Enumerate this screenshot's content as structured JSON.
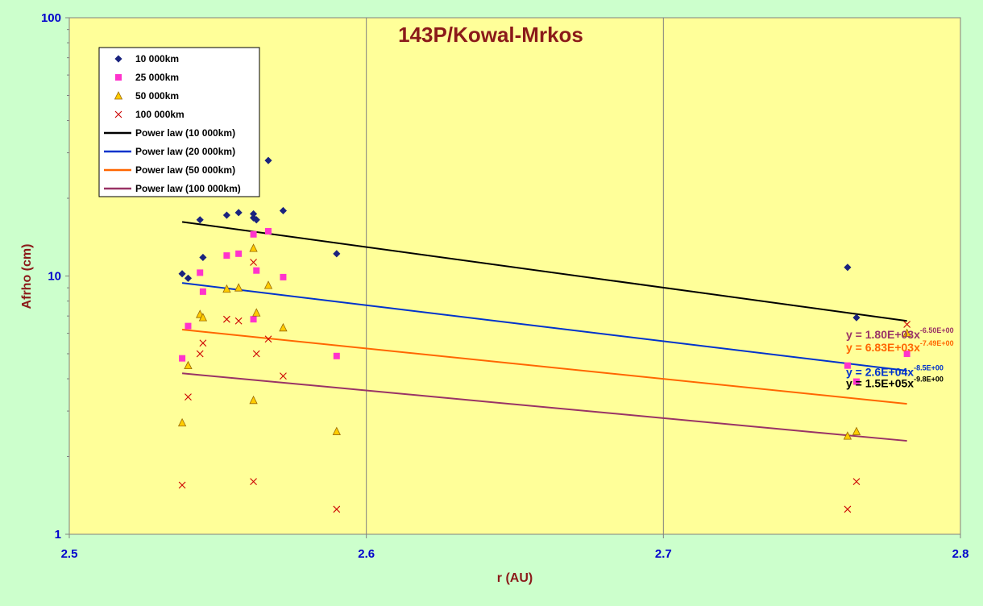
{
  "chart_data": {
    "type": "scatter",
    "title": "143P/Kowal-Mrkos",
    "xlabel": "r (AU)",
    "ylabel": "Afrho (cm)",
    "xlim": [
      2.5,
      2.8
    ],
    "ylim": [
      1,
      100
    ],
    "yscale": "log",
    "x_ticks": [
      "2.5",
      "2.6",
      "2.7",
      "2.8"
    ],
    "y_ticks": [
      "1",
      "10",
      "100"
    ],
    "grid": "vertical",
    "legend_position": "top-left",
    "colors": {
      "background": "#ccffcc",
      "plot_area": "#ffff99",
      "tick_text": "#0000cc",
      "title_text": "#8b1a1a"
    },
    "series": [
      {
        "name": "10 000km",
        "marker": "diamond",
        "color": "#1a237e",
        "points": [
          [
            2.538,
            10.2
          ],
          [
            2.54,
            9.8
          ],
          [
            2.544,
            16.5
          ],
          [
            2.545,
            11.8
          ],
          [
            2.553,
            17.2
          ],
          [
            2.557,
            17.6
          ],
          [
            2.562,
            17.4
          ],
          [
            2.562,
            16.8
          ],
          [
            2.563,
            16.5
          ],
          [
            2.567,
            28.0
          ],
          [
            2.572,
            17.9
          ],
          [
            2.59,
            12.2
          ],
          [
            2.762,
            10.8
          ],
          [
            2.765,
            6.9
          ]
        ]
      },
      {
        "name": "25 000km",
        "marker": "square",
        "color": "#ff33cc",
        "points": [
          [
            2.538,
            4.8
          ],
          [
            2.54,
            6.4
          ],
          [
            2.544,
            10.3
          ],
          [
            2.545,
            8.7
          ],
          [
            2.553,
            12.0
          ],
          [
            2.557,
            12.2
          ],
          [
            2.562,
            14.5
          ],
          [
            2.562,
            6.8
          ],
          [
            2.563,
            10.5
          ],
          [
            2.567,
            14.9
          ],
          [
            2.572,
            9.9
          ],
          [
            2.59,
            4.9
          ],
          [
            2.762,
            4.5
          ],
          [
            2.765,
            3.9
          ],
          [
            2.782,
            5.0
          ]
        ]
      },
      {
        "name": "50 000km",
        "marker": "triangle",
        "color": "#ffcc00",
        "points": [
          [
            2.538,
            2.7
          ],
          [
            2.54,
            4.5
          ],
          [
            2.544,
            7.1
          ],
          [
            2.545,
            6.9
          ],
          [
            2.553,
            8.9
          ],
          [
            2.557,
            9.0
          ],
          [
            2.562,
            12.8
          ],
          [
            2.562,
            3.3
          ],
          [
            2.563,
            7.2
          ],
          [
            2.567,
            9.2
          ],
          [
            2.572,
            6.3
          ],
          [
            2.59,
            2.5
          ],
          [
            2.762,
            2.4
          ],
          [
            2.765,
            2.5
          ],
          [
            2.782,
            6.0
          ]
        ]
      },
      {
        "name": "100 000km",
        "marker": "cross",
        "color": "#cc0000",
        "points": [
          [
            2.538,
            1.55
          ],
          [
            2.54,
            3.4
          ],
          [
            2.544,
            5.0
          ],
          [
            2.545,
            5.5
          ],
          [
            2.553,
            6.8
          ],
          [
            2.557,
            6.7
          ],
          [
            2.562,
            11.3
          ],
          [
            2.562,
            1.6
          ],
          [
            2.563,
            5.0
          ],
          [
            2.567,
            5.7
          ],
          [
            2.572,
            4.1
          ],
          [
            2.59,
            1.25
          ],
          [
            2.762,
            1.25
          ],
          [
            2.765,
            1.6
          ],
          [
            2.782,
            6.5
          ]
        ]
      }
    ],
    "fits": [
      {
        "name": "Power law (10 000km)",
        "color": "#000000",
        "x": [
          2.538,
          2.782
        ],
        "y": [
          16.2,
          6.7
        ],
        "eq_main": "y = 1.5E+05x",
        "eq_exp": "-9.8E+00",
        "eq_color": "#000000",
        "eq_y": 3.85
      },
      {
        "name": "Power law (20 000km)",
        "color": "#0033cc",
        "x": [
          2.538,
          2.782
        ],
        "y": [
          9.4,
          4.3
        ],
        "eq_main": "y = 2.6E+04x",
        "eq_exp": "-8.5E+00",
        "eq_color": "#0033cc",
        "eq_y": 4.25
      },
      {
        "name": "Power law (50 000km)",
        "color": "#ff6600",
        "x": [
          2.538,
          2.782
        ],
        "y": [
          6.2,
          3.2
        ],
        "eq_main": "y = 6.83E+03x",
        "eq_exp": "-7.49E+00",
        "eq_color": "#ff6600",
        "eq_y": 5.3
      },
      {
        "name": "Power law (100 000km)",
        "color": "#993366",
        "x": [
          2.538,
          2.782
        ],
        "y": [
          4.2,
          2.3
        ],
        "eq_main": "y = 1.80E+03x",
        "eq_exp": "-6.50E+00",
        "eq_color": "#993366",
        "eq_y": 5.95
      }
    ]
  }
}
